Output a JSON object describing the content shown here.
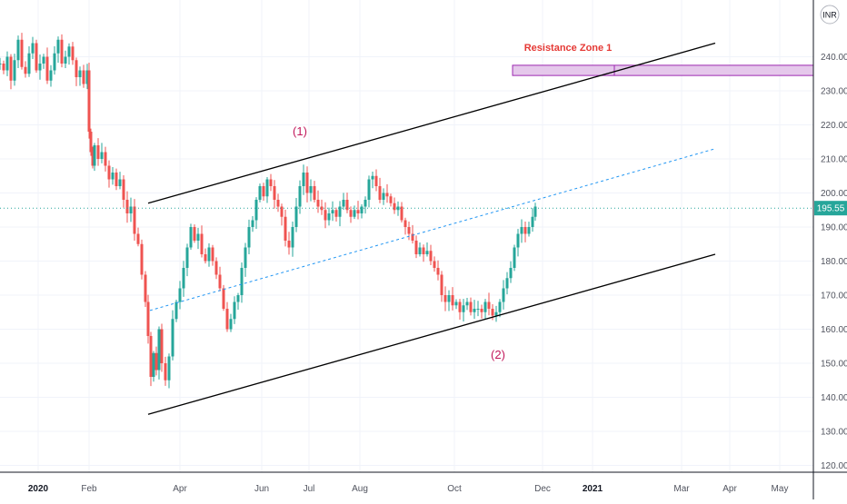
{
  "chart_data": {
    "type": "candlestick",
    "currency": "INR",
    "last_price": "195.55",
    "ylim": [
      118,
      254
    ],
    "y_ticks": [
      120,
      130,
      140,
      150,
      160,
      170,
      180,
      190,
      200,
      210,
      220,
      230,
      240
    ],
    "y_tick_labels": [
      "120.00",
      "130.00",
      "140.00",
      "150.00",
      "160.00",
      "170.00",
      "180.00",
      "190.00",
      "200.00",
      "210.00",
      "220.00",
      "230.00",
      "240.00"
    ],
    "x_labels": [
      "2020",
      "Feb",
      "Apr",
      "Jun",
      "Jul",
      "Aug",
      "Oct",
      "Dec",
      "2021",
      "Mar",
      "Apr",
      "May"
    ],
    "annotations": {
      "zone_label": "Resistance Zone 1",
      "wave1": "(1)",
      "wave2": "(2)"
    },
    "resistance_zone": {
      "low": 234.5,
      "high": 237.5
    },
    "close_path": [
      [
        0,
        238
      ],
      [
        4,
        236
      ],
      [
        8,
        240
      ],
      [
        12,
        233
      ],
      [
        16,
        239
      ],
      [
        20,
        245
      ],
      [
        24,
        237
      ],
      [
        28,
        235
      ],
      [
        32,
        241
      ],
      [
        36,
        244
      ],
      [
        40,
        236
      ],
      [
        44,
        238
      ],
      [
        48,
        240
      ],
      [
        52,
        233
      ],
      [
        56,
        236
      ],
      [
        60,
        241
      ],
      [
        64,
        245
      ],
      [
        68,
        238
      ],
      [
        72,
        240
      ],
      [
        76,
        243
      ],
      [
        80,
        239
      ],
      [
        84,
        234
      ],
      [
        88,
        236
      ],
      [
        92,
        232
      ],
      [
        96,
        236
      ],
      [
        98,
        218
      ],
      [
        100,
        212
      ],
      [
        102,
        208
      ],
      [
        104,
        214
      ],
      [
        108,
        210
      ],
      [
        112,
        212
      ],
      [
        116,
        208
      ],
      [
        120,
        204
      ],
      [
        124,
        206
      ],
      [
        128,
        202
      ],
      [
        132,
        204
      ],
      [
        136,
        198
      ],
      [
        140,
        194
      ],
      [
        144,
        196
      ],
      [
        148,
        188
      ],
      [
        152,
        185
      ],
      [
        156,
        176
      ],
      [
        160,
        168
      ],
      [
        163,
        158
      ],
      [
        166,
        146
      ],
      [
        169,
        153
      ],
      [
        172,
        148
      ],
      [
        175,
        160
      ],
      [
        178,
        150
      ],
      [
        182,
        145
      ],
      [
        186,
        152
      ],
      [
        190,
        163
      ],
      [
        194,
        168
      ],
      [
        198,
        172
      ],
      [
        202,
        178
      ],
      [
        206,
        184
      ],
      [
        210,
        190
      ],
      [
        214,
        186
      ],
      [
        218,
        188
      ],
      [
        222,
        182
      ],
      [
        226,
        180
      ],
      [
        230,
        184
      ],
      [
        234,
        180
      ],
      [
        238,
        176
      ],
      [
        242,
        172
      ],
      [
        246,
        166
      ],
      [
        250,
        160
      ],
      [
        254,
        163
      ],
      [
        258,
        168
      ],
      [
        262,
        170
      ],
      [
        266,
        178
      ],
      [
        270,
        184
      ],
      [
        274,
        190
      ],
      [
        278,
        192
      ],
      [
        282,
        198
      ],
      [
        286,
        202
      ],
      [
        290,
        199
      ],
      [
        294,
        204
      ],
      [
        298,
        202
      ],
      [
        302,
        198
      ],
      [
        306,
        196
      ],
      [
        310,
        193
      ],
      [
        314,
        186
      ],
      [
        318,
        184
      ],
      [
        322,
        190
      ],
      [
        326,
        196
      ],
      [
        330,
        202
      ],
      [
        334,
        206
      ],
      [
        338,
        200
      ],
      [
        342,
        202
      ],
      [
        346,
        198
      ],
      [
        350,
        196
      ],
      [
        354,
        195
      ],
      [
        358,
        192
      ],
      [
        362,
        194
      ],
      [
        366,
        195
      ],
      [
        370,
        193
      ],
      [
        374,
        196
      ],
      [
        378,
        198
      ],
      [
        382,
        195
      ],
      [
        386,
        193
      ],
      [
        390,
        195
      ],
      [
        394,
        194
      ],
      [
        398,
        196
      ],
      [
        402,
        198
      ],
      [
        406,
        204
      ],
      [
        410,
        205
      ],
      [
        414,
        202
      ],
      [
        418,
        198
      ],
      [
        422,
        200
      ],
      [
        426,
        199
      ],
      [
        430,
        197
      ],
      [
        434,
        195
      ],
      [
        438,
        196
      ],
      [
        442,
        192
      ],
      [
        446,
        190
      ],
      [
        450,
        188
      ],
      [
        454,
        186
      ],
      [
        458,
        182
      ],
      [
        462,
        184
      ],
      [
        466,
        182
      ],
      [
        470,
        183
      ],
      [
        474,
        180
      ],
      [
        478,
        178
      ],
      [
        482,
        176
      ],
      [
        486,
        170
      ],
      [
        490,
        168
      ],
      [
        494,
        170
      ],
      [
        498,
        167
      ],
      [
        502,
        168
      ],
      [
        506,
        165
      ],
      [
        510,
        167
      ],
      [
        514,
        168
      ],
      [
        518,
        165
      ],
      [
        522,
        166
      ],
      [
        526,
        166
      ],
      [
        530,
        165
      ],
      [
        534,
        168
      ],
      [
        538,
        166
      ],
      [
        542,
        164
      ],
      [
        546,
        165
      ],
      [
        550,
        168
      ],
      [
        554,
        172
      ],
      [
        558,
        175
      ],
      [
        562,
        178
      ],
      [
        566,
        184
      ],
      [
        570,
        188
      ],
      [
        574,
        190
      ],
      [
        578,
        188
      ],
      [
        582,
        190
      ],
      [
        586,
        193
      ],
      [
        589,
        196
      ]
    ],
    "channel_upper": {
      "x1": 163,
      "y1": 197,
      "x2": 787,
      "y2": 244
    },
    "channel_lower": {
      "x1": 163,
      "y1": 135,
      "x2": 787,
      "y2": 182
    },
    "channel_mid": {
      "x1": 165,
      "y1": 165.5,
      "x2": 787,
      "y2": 213
    }
  }
}
